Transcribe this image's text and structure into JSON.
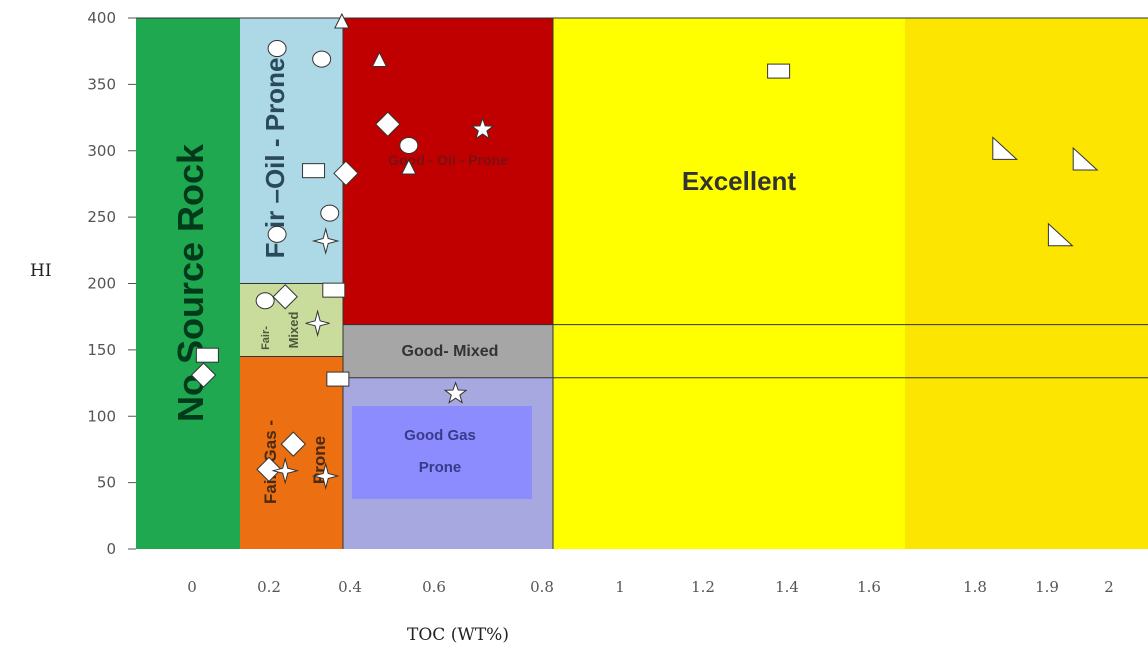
{
  "chart_data": {
    "type": "scatter",
    "title": "",
    "xlabel": "TOC (WT%)",
    "ylabel": "HI",
    "ylim": [
      0,
      400
    ],
    "yticks": [
      "0",
      "50",
      "100",
      "150",
      "200",
      "250",
      "300",
      "350",
      "400"
    ],
    "xticks": [
      "0",
      "0.2",
      "0.4",
      "0.6",
      "0.8",
      "1",
      "1.2",
      "1.4",
      "1.6",
      "1.8",
      "1.9",
      "2"
    ],
    "grid": false,
    "zones": [
      {
        "label": "No  Source  Rock",
        "color": "#1fa84f"
      },
      {
        "label": "Fair –Oil - Prone",
        "color": "#add8e6"
      },
      {
        "label": "Fair - Mixed",
        "color": "#c9dc9c"
      },
      {
        "label": "Fair- Gas - Prone",
        "color": "#ec7012"
      },
      {
        "label": "Good - Oil - Prone",
        "color": "#c00000"
      },
      {
        "label": "Good- Mixed",
        "color": "#a6a6a6"
      },
      {
        "label": "Good Gas Prone",
        "color": "#a8a8e0",
        "inner_color": "#8c8cff"
      },
      {
        "label": "Excellent",
        "color": "#ffff00"
      }
    ],
    "series": [
      {
        "marker": "circle",
        "points": [
          {
            "x": 0.22,
            "y": 377
          },
          {
            "x": 0.33,
            "y": 369
          },
          {
            "x": 0.54,
            "y": 304
          },
          {
            "x": 0.35,
            "y": 253
          },
          {
            "x": 0.22,
            "y": 237
          },
          {
            "x": 0.19,
            "y": 187
          }
        ]
      },
      {
        "marker": "triangle",
        "points": [
          {
            "x": 0.38,
            "y": 397
          },
          {
            "x": 0.47,
            "y": 368
          },
          {
            "x": 0.54,
            "y": 287
          }
        ]
      },
      {
        "marker": "square",
        "points": [
          {
            "x": 0.31,
            "y": 285
          },
          {
            "x": 0.36,
            "y": 195
          },
          {
            "x": 0.04,
            "y": 146
          },
          {
            "x": 0.37,
            "y": 128
          },
          {
            "x": 1.38,
            "y": 360
          }
        ]
      },
      {
        "marker": "diamond",
        "points": [
          {
            "x": 0.49,
            "y": 320
          },
          {
            "x": 0.39,
            "y": 283
          },
          {
            "x": 0.24,
            "y": 190
          },
          {
            "x": 0.03,
            "y": 131
          },
          {
            "x": 0.2,
            "y": 60
          },
          {
            "x": 0.26,
            "y": 79
          }
        ]
      },
      {
        "marker": "star",
        "points": [
          {
            "x": 0.69,
            "y": 316
          },
          {
            "x": 0.64,
            "y": 117
          }
        ]
      },
      {
        "marker": "four-point-star",
        "points": [
          {
            "x": 0.34,
            "y": 232
          },
          {
            "x": 0.32,
            "y": 170
          },
          {
            "x": 0.24,
            "y": 59
          },
          {
            "x": 0.34,
            "y": 55
          }
        ]
      },
      {
        "marker": "right-triangle",
        "points": [
          {
            "x": 1.84,
            "y": 301
          },
          {
            "x": 1.96,
            "y": 293
          },
          {
            "x": 1.92,
            "y": 236
          }
        ]
      }
    ]
  }
}
